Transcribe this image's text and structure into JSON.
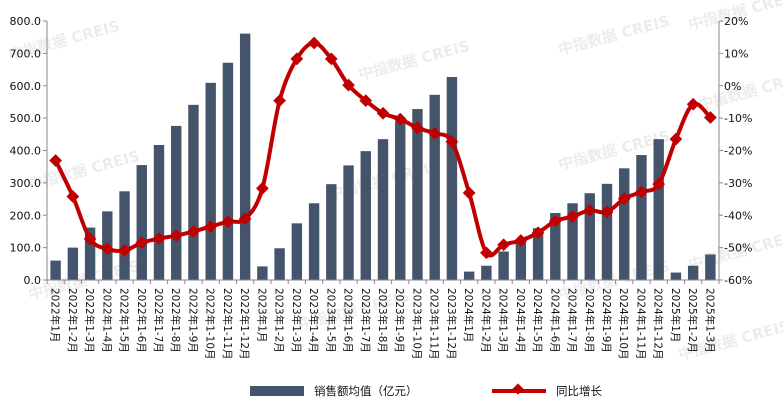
{
  "watermark": "中指数据 CREIS",
  "chart_data": {
    "type": "bar+line",
    "title": "",
    "categories": [
      "2022年1月",
      "2022年1-2月",
      "2022年1-3月",
      "2022年1-4月",
      "2022年1-5月",
      "2022年1-6月",
      "2022年1-7月",
      "2022年1-8月",
      "2022年1-9月",
      "2022年1-10月",
      "2022年1-11月",
      "2022年1-12月",
      "2023年1月",
      "2023年1-2月",
      "2023年1-3月",
      "2023年1-4月",
      "2023年1-5月",
      "2023年1-6月",
      "2023年1-7月",
      "2023年1-8月",
      "2023年1-9月",
      "2023年1-10月",
      "2023年1-11月",
      "2023年1-12月",
      "2024年1月",
      "2024年1-2月",
      "2024年1-3月",
      "2024年1-4月",
      "2024年1-5月",
      "2024年1-6月",
      "2024年1-7月",
      "2024年1-8月",
      "2024年1-9月",
      "2024年1-10月",
      "2024年1-11月",
      "2024年1-12月",
      "2025年1月",
      "2025年1-2月",
      "2025年1-3月"
    ],
    "series": [
      {
        "name": "销售额均值（亿元）",
        "type": "bar",
        "axis": "left",
        "color": "#44546a",
        "values": [
          60,
          100,
          162,
          212,
          274,
          355,
          417,
          476,
          541,
          609,
          671,
          761,
          42,
          98,
          175,
          237,
          296,
          354,
          398,
          435,
          490,
          528,
          572,
          627,
          26,
          44,
          88,
          123,
          160,
          207,
          237,
          268,
          297,
          345,
          386,
          435,
          23,
          44,
          79
        ]
      },
      {
        "name": "同比增长",
        "type": "line",
        "axis": "right",
        "color": "#c00000",
        "unit": "%",
        "values": [
          -23.1,
          -34.2,
          -47.3,
          -50.4,
          -50.9,
          -48.5,
          -47.2,
          -46.3,
          -45,
          -43.5,
          -42,
          -41.1,
          -31.7,
          -4.6,
          8.3,
          13.2,
          8.3,
          0.2,
          -4.6,
          -8.5,
          -10.3,
          -13,
          -14.7,
          -17.3,
          -33.1,
          -51.6,
          -49.1,
          -47.8,
          -45.4,
          -41.8,
          -40.4,
          -38.5,
          -39,
          -34.9,
          -32.8,
          -30.4,
          -16.5,
          -5.7,
          -9.8
        ]
      }
    ],
    "left_axis": {
      "ylim": [
        0,
        800
      ],
      "ticks": [
        "0.0",
        "100.0",
        "200.0",
        "300.0",
        "400.0",
        "500.0",
        "600.0",
        "700.0",
        "800.0"
      ]
    },
    "right_axis": {
      "ylim": [
        -60,
        20
      ],
      "ticks": [
        "-60%",
        "-50%",
        "-40%",
        "-30%",
        "-20%",
        "-10%",
        "0%",
        "10%",
        "20%"
      ]
    },
    "grid": false,
    "legend_position": "bottom"
  }
}
